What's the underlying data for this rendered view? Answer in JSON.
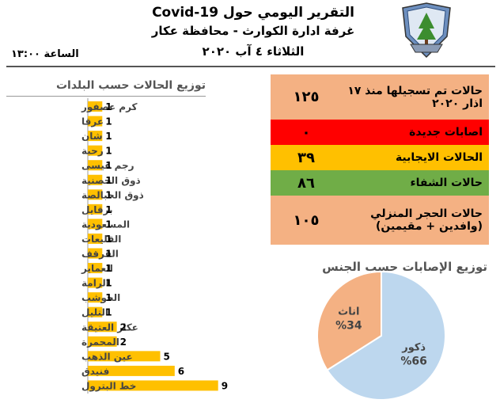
{
  "header": {
    "title_line1": "التقرير اليومي حول Covid-19",
    "title_line2": "غرفة ادارة الكوارث - محافظة عكار",
    "date": "الثلاثاء ٤ آب ٢٠٢٠",
    "time": "الساعة ١٣:٠٠"
  },
  "stats": [
    {
      "label": "حالات تم تسجيلها منذ ١٧ اذار ٢٠٢٠",
      "value": "١٢٥",
      "color": "#f4b183"
    },
    {
      "label": "اصابات جديدة",
      "value": "٠",
      "color": "#ff0000"
    },
    {
      "label": "الحالات الايجابية",
      "value": "٣٩",
      "color": "#ffc000"
    },
    {
      "label": "حالات الشفاء",
      "value": "٨٦",
      "color": "#70ad47"
    },
    {
      "label": "حالات الحجر المنزلي (وافدين + مقيمين)",
      "value": "١٠٥",
      "color": "#f4b183"
    }
  ],
  "chart_data": [
    {
      "type": "bar",
      "orientation": "horizontal",
      "title": "توزيع الحالات حسب البلدات",
      "categories": [
        "كرم عصفور",
        "عرقا",
        "شان",
        "رحبة",
        "رجم عيسى",
        "ذوق الحصنية",
        "ذوق الحبالصة",
        "برقايل",
        "المسعودية",
        "القليعات",
        "القرقف",
        "العماير",
        "الرامة",
        "الحوشب",
        "التليل",
        "عكار العتيقة",
        "المحمرة",
        "عين الذهب",
        "فنيدق",
        "خط البترول"
      ],
      "values": [
        1,
        1,
        1,
        1,
        1,
        1,
        1,
        1,
        1,
        1,
        1,
        1,
        1,
        1,
        1,
        2,
        2,
        5,
        6,
        9
      ],
      "bar_color": "#ffc000",
      "grid": false
    },
    {
      "type": "pie",
      "title": "توزيع الإصابات حسب الجنس",
      "slices": [
        {
          "label": "ذكور",
          "percent_label": "%66",
          "value": 66,
          "color": "#bdd7ee"
        },
        {
          "label": "اناث",
          "percent_label": "%34",
          "value": 34,
          "color": "#f4b183"
        }
      ]
    }
  ]
}
